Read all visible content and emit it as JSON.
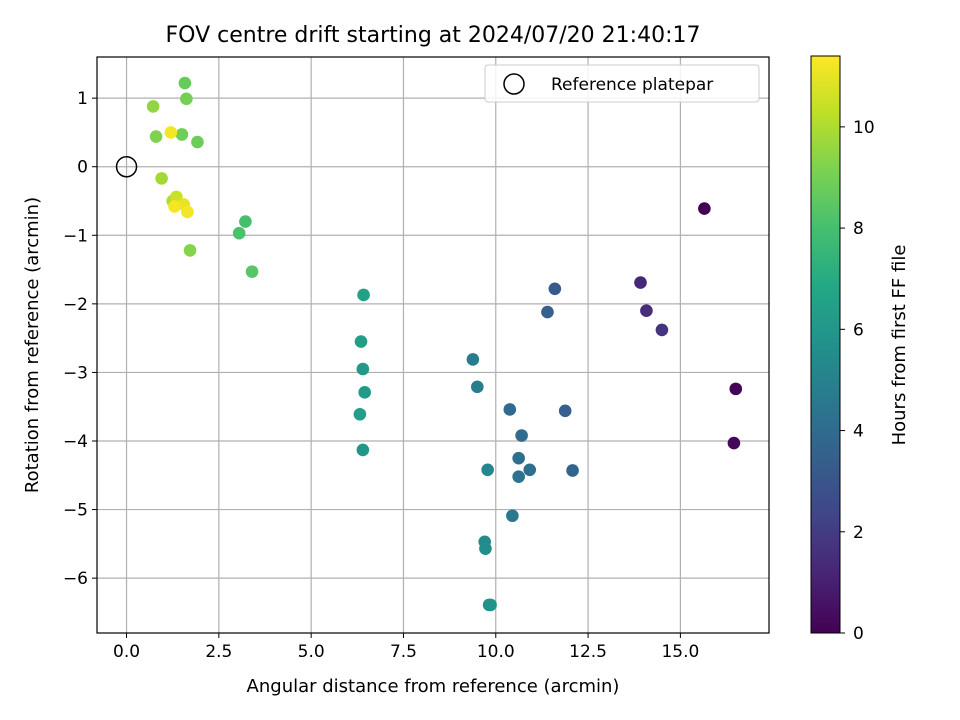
{
  "chart_data": {
    "type": "scatter",
    "title": "FOV centre drift starting at 2024/07/20 21:40:17",
    "xlabel": "Angular distance from reference (arcmin)",
    "ylabel": "Rotation from reference (arcmin)",
    "xlim": [
      -0.8,
      17.4
    ],
    "ylim": [
      -6.8,
      1.6
    ],
    "xticks": [
      0.0,
      2.5,
      5.0,
      7.5,
      10.0,
      12.5,
      15.0
    ],
    "xtick_labels": [
      "0.0",
      "2.5",
      "5.0",
      "7.5",
      "10.0",
      "12.5",
      "15.0"
    ],
    "yticks": [
      1,
      0,
      -1,
      -2,
      -3,
      -4,
      -5,
      -6
    ],
    "ytick_labels": [
      "1",
      "0",
      "−1",
      "−2",
      "−3",
      "−4",
      "−5",
      "−6"
    ],
    "grid": true,
    "legend": {
      "placement": "top-right",
      "entries": [
        "Reference platepar"
      ]
    },
    "reference_point": {
      "x": 0.0,
      "y": 0.0
    },
    "colorbar": {
      "label": "Hours from first FF file",
      "range": [
        0,
        11.4
      ],
      "ticks": [
        0,
        2,
        4,
        6,
        8,
        10
      ],
      "tick_labels": [
        "0",
        "2",
        "4",
        "6",
        "8",
        "10"
      ],
      "colormap": "viridis"
    },
    "points": [
      {
        "x": 15.65,
        "y": -0.61,
        "c": 0.0
      },
      {
        "x": 16.5,
        "y": -3.24,
        "c": 0.1
      },
      {
        "x": 16.45,
        "y": -4.03,
        "c": 0.2
      },
      {
        "x": 13.92,
        "y": -1.69,
        "c": 1.3
      },
      {
        "x": 14.08,
        "y": -2.1,
        "c": 1.5
      },
      {
        "x": 14.5,
        "y": -2.38,
        "c": 1.7
      },
      {
        "x": 11.6,
        "y": -1.78,
        "c": 3.2
      },
      {
        "x": 11.4,
        "y": -2.12,
        "c": 3.4
      },
      {
        "x": 11.88,
        "y": -3.56,
        "c": 3.5
      },
      {
        "x": 12.08,
        "y": -4.43,
        "c": 3.7
      },
      {
        "x": 10.38,
        "y": -3.54,
        "c": 3.9
      },
      {
        "x": 10.7,
        "y": -3.92,
        "c": 4.0
      },
      {
        "x": 10.62,
        "y": -4.25,
        "c": 4.1
      },
      {
        "x": 10.92,
        "y": -4.42,
        "c": 4.2
      },
      {
        "x": 10.62,
        "y": -4.52,
        "c": 4.3
      },
      {
        "x": 10.45,
        "y": -5.09,
        "c": 4.5
      },
      {
        "x": 9.38,
        "y": -2.81,
        "c": 4.7
      },
      {
        "x": 9.5,
        "y": -3.21,
        "c": 4.8
      },
      {
        "x": 9.78,
        "y": -4.42,
        "c": 5.2
      },
      {
        "x": 9.7,
        "y": -5.47,
        "c": 5.4
      },
      {
        "x": 9.72,
        "y": -5.57,
        "c": 5.5
      },
      {
        "x": 9.82,
        "y": -6.39,
        "c": 5.7
      },
      {
        "x": 9.86,
        "y": -6.39,
        "c": 5.8
      },
      {
        "x": 6.42,
        "y": -1.87,
        "c": 6.5
      },
      {
        "x": 6.35,
        "y": -2.55,
        "c": 6.3
      },
      {
        "x": 6.4,
        "y": -2.95,
        "c": 6.1
      },
      {
        "x": 6.45,
        "y": -3.29,
        "c": 6.2
      },
      {
        "x": 6.32,
        "y": -3.61,
        "c": 6.4
      },
      {
        "x": 6.4,
        "y": -4.13,
        "c": 6.0
      },
      {
        "x": 3.22,
        "y": -0.8,
        "c": 8.0
      },
      {
        "x": 3.05,
        "y": -0.97,
        "c": 8.1
      },
      {
        "x": 3.4,
        "y": -1.53,
        "c": 8.4
      },
      {
        "x": 1.72,
        "y": -1.22,
        "c": 9.3
      },
      {
        "x": 0.72,
        "y": 0.88,
        "c": 9.5
      },
      {
        "x": 1.58,
        "y": 1.22,
        "c": 8.7
      },
      {
        "x": 1.62,
        "y": 0.99,
        "c": 9.0
      },
      {
        "x": 0.8,
        "y": 0.44,
        "c": 9.2
      },
      {
        "x": 1.5,
        "y": 0.47,
        "c": 8.9
      },
      {
        "x": 1.92,
        "y": 0.36,
        "c": 8.8
      },
      {
        "x": 1.2,
        "y": 0.5,
        "c": 11.2
      },
      {
        "x": 0.95,
        "y": -0.17,
        "c": 9.8
      },
      {
        "x": 1.25,
        "y": -0.5,
        "c": 10.0
      },
      {
        "x": 1.35,
        "y": -0.44,
        "c": 10.5
      },
      {
        "x": 1.55,
        "y": -0.55,
        "c": 11.0
      },
      {
        "x": 1.3,
        "y": -0.58,
        "c": 11.3
      },
      {
        "x": 1.65,
        "y": -0.66,
        "c": 11.2
      }
    ]
  }
}
